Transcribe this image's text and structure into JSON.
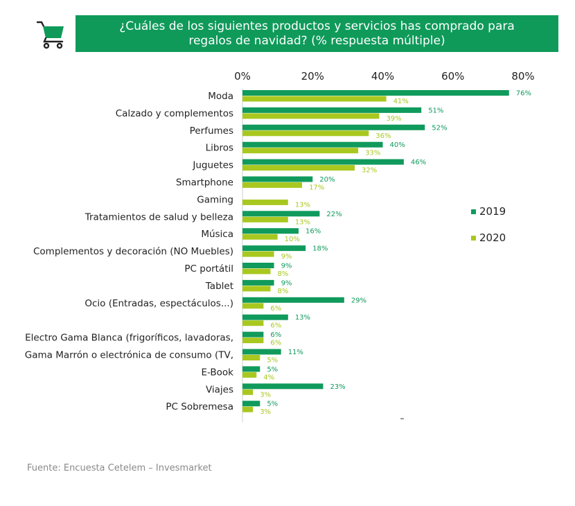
{
  "header": {
    "title": "¿Cuáles de los siguientes productos y servicios has comprado para regalos de navidad? (% respuesta múltiple)",
    "icon": "shopping-cart-icon"
  },
  "colors": {
    "brand": "#0f9a5a",
    "series_2019": "#109a5c",
    "series_2020": "#a8c820"
  },
  "chart_data": {
    "type": "bar",
    "orientation": "horizontal",
    "title": "¿Cuáles de los siguientes productos y servicios has comprado para regalos de navidad? (% respuesta múltiple)",
    "xlim": [
      0,
      80
    ],
    "xticks": [
      "0%",
      "20%",
      "40%",
      "60%",
      "80%"
    ],
    "categories": [
      "Moda",
      "Calzado y complementos",
      "Perfumes",
      "Libros",
      "Juguetes",
      "Smartphone",
      "Gaming",
      "Tratamientos de salud y belleza",
      "Música",
      "Complementos y decoración (NO Muebles)",
      "PC portátil",
      "Tablet",
      "Ocio (Entradas, espectáculos...)",
      "",
      "Electro Gama Blanca (frigoríficos, lavadoras,",
      "Gama Marrón o electrónica de consumo (TV,",
      "E-Book",
      "Viajes",
      "PC Sobremesa"
    ],
    "series": [
      {
        "name": "2019",
        "values": [
          76,
          51,
          52,
          40,
          46,
          20,
          null,
          22,
          16,
          18,
          9,
          9,
          29,
          13,
          6,
          11,
          5,
          23,
          5
        ],
        "labels": [
          "76%",
          "51%",
          "52%",
          "40%",
          "46%",
          "20%",
          "",
          "22%",
          "16%",
          "18%",
          "9%",
          "9%",
          "29%",
          "13%",
          "6%",
          "11%",
          "5%",
          "23%",
          "5%"
        ]
      },
      {
        "name": "2020",
        "values": [
          41,
          39,
          36,
          33,
          32,
          17,
          13,
          13,
          10,
          9,
          8,
          8,
          6,
          6,
          6,
          5,
          4,
          3,
          3
        ],
        "labels": [
          "41%",
          "39%",
          "36%",
          "33%",
          "32%",
          "17%",
          "13%",
          "13%",
          "10%",
          "9%",
          "8%",
          "8%",
          "6%",
          "6%",
          "6%",
          "5%",
          "4%",
          "3%",
          "3%"
        ]
      }
    ],
    "legend": [
      "2019",
      "2020"
    ],
    "legend_position": "right"
  },
  "footer": {
    "source": "Fuente: Encuesta Cetelem – Invesmarket"
  }
}
